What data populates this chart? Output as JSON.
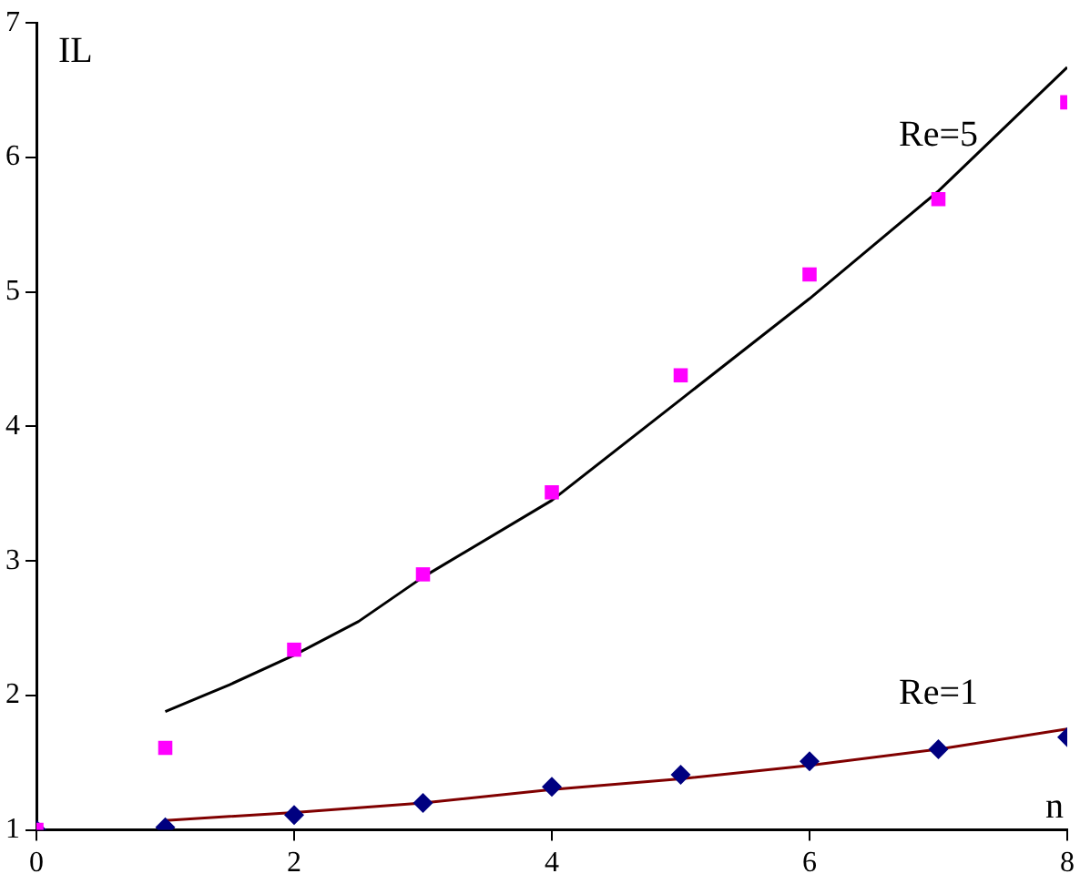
{
  "chart_data": {
    "type": "scatter",
    "xlabel": "n",
    "ylabel": "IL",
    "xlim": [
      0,
      8
    ],
    "xticks": [
      0,
      2,
      4,
      6,
      8
    ],
    "ylim": [
      1,
      7
    ],
    "yticks": [
      1,
      2,
      3,
      4,
      5,
      6,
      7
    ],
    "grid": false,
    "legend": false,
    "series": [
      {
        "marker": "square",
        "color": "#ff00ff",
        "x": [
          0,
          1,
          2,
          3,
          4,
          5,
          6,
          7,
          8
        ],
        "values": [
          1,
          1.61,
          2.34,
          2.9,
          3.51,
          4.38,
          5.13,
          5.69,
          6.41
        ]
      },
      {
        "type": "line",
        "name": "Re=5",
        "marker": "none",
        "color": "#000000",
        "x": [
          1,
          1.5,
          2,
          2.5,
          3,
          4,
          5,
          6,
          7,
          8
        ],
        "values": [
          1.88,
          2.08,
          2.3,
          2.55,
          2.88,
          3.45,
          4.2,
          4.95,
          5.75,
          6.67
        ]
      },
      {
        "marker": "diamond",
        "color": "#000080",
        "x": [
          0,
          1,
          2,
          3,
          4,
          5,
          6,
          7,
          8
        ],
        "values": [
          1,
          1.02,
          1.11,
          1.2,
          1.32,
          1.41,
          1.51,
          1.6,
          1.69
        ]
      },
      {
        "type": "line",
        "name": "Re=1",
        "marker": "none",
        "color": "#800000",
        "x": [
          1,
          2,
          3,
          4,
          5,
          6,
          7,
          8
        ],
        "values": [
          1.07,
          1.13,
          1.2,
          1.3,
          1.38,
          1.48,
          1.6,
          1.75
        ]
      }
    ]
  }
}
